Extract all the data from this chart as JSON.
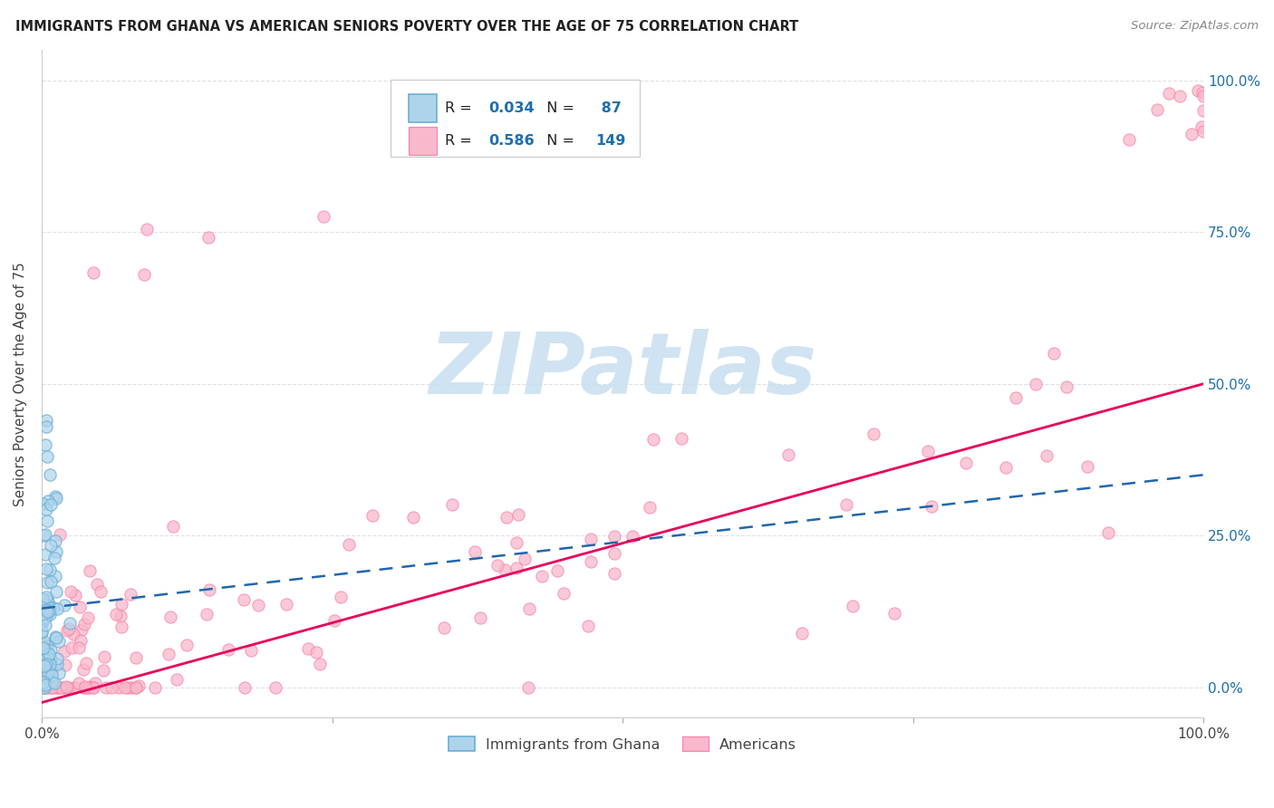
{
  "title": "IMMIGRANTS FROM GHANA VS AMERICAN SENIORS POVERTY OVER THE AGE OF 75 CORRELATION CHART",
  "source": "Source: ZipAtlas.com",
  "ylabel": "Seniors Poverty Over the Age of 75",
  "legend_r1": "0.034",
  "legend_n1": " 87",
  "legend_r2": "0.586",
  "legend_n2": "149",
  "color_ghana_face": "#aed4ec",
  "color_ghana_edge": "#6baed6",
  "color_americans_face": "#f9b8cb",
  "color_americans_edge": "#f985a8",
  "color_blue_line": "#2166ac",
  "color_pink_line": "#e8005a",
  "color_right_axis": "#1a6faf",
  "watermark_color": "#c8dff0",
  "watermark_text": "ZIPatlas",
  "ghana_line_y0": 0.13,
  "ghana_line_y1": 0.35,
  "pink_line_y0": -0.025,
  "pink_line_y1": 0.5,
  "xlim": [
    0,
    1.0
  ],
  "ylim": [
    -0.05,
    1.05
  ],
  "scatter_size": 70,
  "figsize": [
    14.06,
    8.92
  ],
  "dpi": 100
}
